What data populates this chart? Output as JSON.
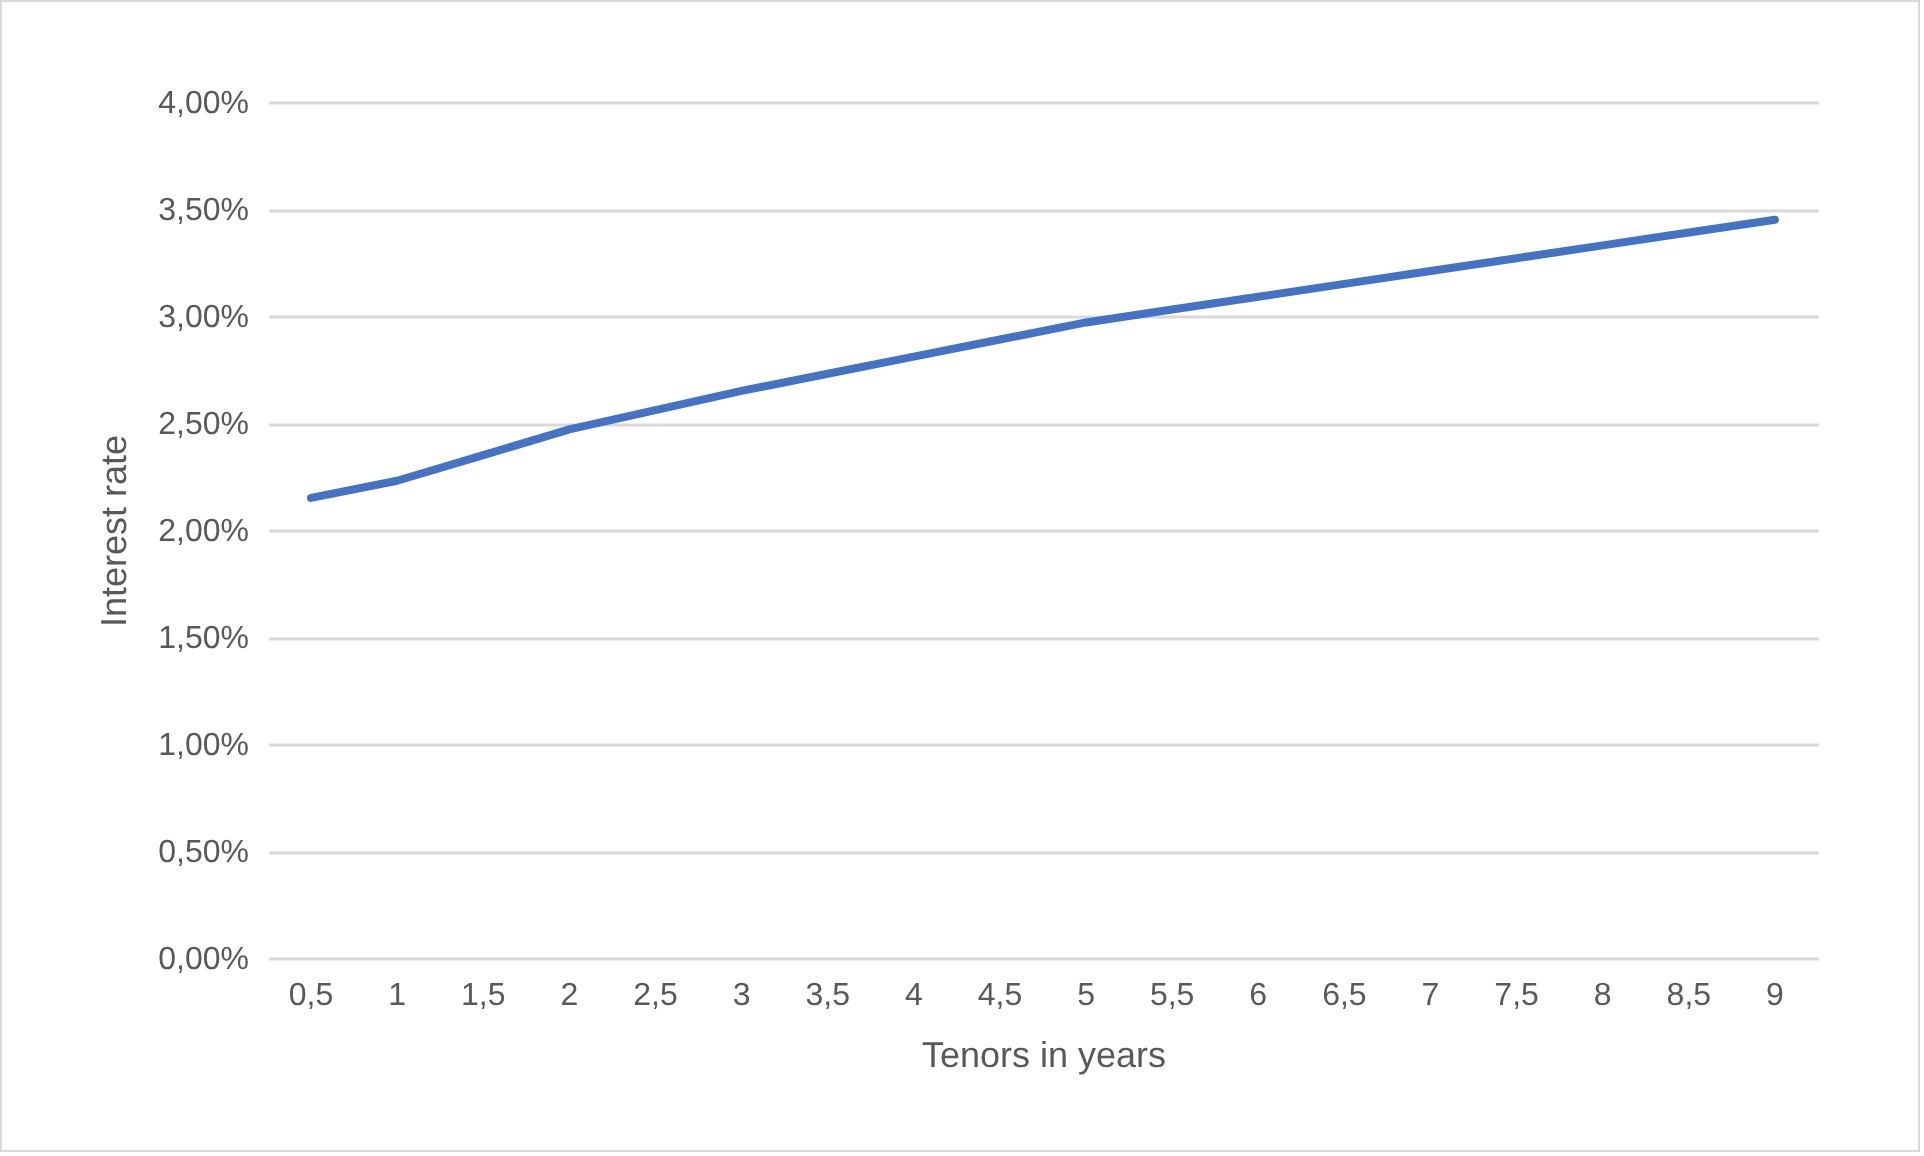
{
  "chart_data": {
    "type": "line",
    "xlabel": "Tenors in years",
    "ylabel": "Interest rate",
    "categories": [
      "0,5",
      "1",
      "1,5",
      "2",
      "2,5",
      "3",
      "3,5",
      "4",
      "4,5",
      "5",
      "5,5",
      "6",
      "6,5",
      "7",
      "7,5",
      "8",
      "8,5",
      "9"
    ],
    "series": [
      {
        "color": "#4472c4",
        "values": [
          2.15,
          2.23,
          2.35,
          2.47,
          2.56,
          2.65,
          2.73,
          2.81,
          2.89,
          2.97,
          3.03,
          3.09,
          3.15,
          3.21,
          3.27,
          3.33,
          3.39,
          3.45
        ]
      }
    ],
    "ylim": [
      0,
      4
    ],
    "yticks": [
      {
        "value": 0,
        "label": "0,00%"
      },
      {
        "value": 0.5,
        "label": "0,50%"
      },
      {
        "value": 1,
        "label": "1,00%"
      },
      {
        "value": 1.5,
        "label": "1,50%"
      },
      {
        "value": 2,
        "label": "2,00%"
      },
      {
        "value": 2.5,
        "label": "2,50%"
      },
      {
        "value": 3,
        "label": "3,00%"
      },
      {
        "value": 3.5,
        "label": "3,50%"
      },
      {
        "value": 4,
        "label": "4,00%"
      }
    ],
    "grid": "y",
    "marker": "none",
    "line_style": "solid"
  }
}
